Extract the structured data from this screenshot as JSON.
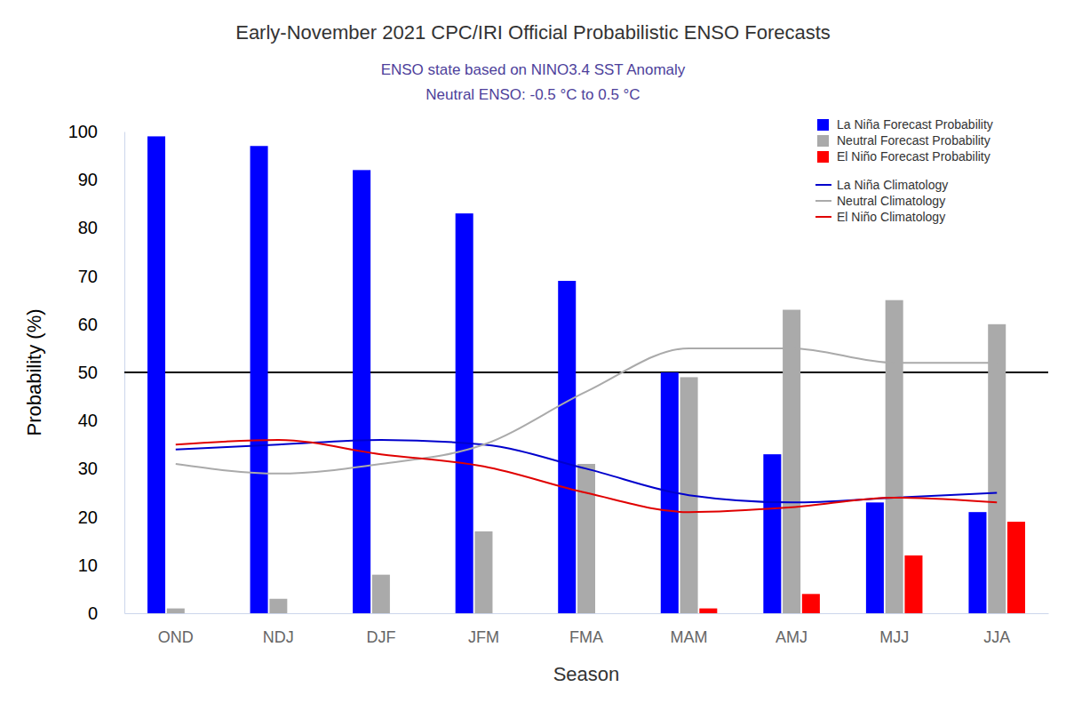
{
  "chart_data": {
    "type": "bar",
    "title": "Early-November 2021 CPC/IRI Official Probabilistic ENSO Forecasts",
    "subtitle": [
      "ENSO state based on NINO3.4 SST Anomaly",
      "Neutral ENSO: -0.5 °C to 0.5 °C"
    ],
    "x_label": "Season",
    "y_label": "Probability (%)",
    "categories": [
      "OND",
      "NDJ",
      "DJF",
      "JFM",
      "FMA",
      "MAM",
      "AMJ",
      "MJJ",
      "JJA"
    ],
    "series": [
      {
        "name": "La Niña Forecast Probability",
        "type": "bar",
        "color": "#0000ff",
        "values": [
          99,
          97,
          92,
          83,
          69,
          50,
          33,
          23,
          21
        ]
      },
      {
        "name": "Neutral Forecast Probability",
        "type": "bar",
        "color": "#aaaaaa",
        "values": [
          1,
          3,
          8,
          17,
          31,
          49,
          63,
          65,
          60
        ]
      },
      {
        "name": "El Niño Forecast Probability",
        "type": "bar",
        "color": "#ff0000",
        "values": [
          0,
          0,
          0,
          0,
          0,
          1,
          4,
          12,
          19
        ]
      },
      {
        "name": "La Niña Climatology",
        "type": "line",
        "color": "#0000cc",
        "line_style": "solid",
        "values": [
          34,
          35,
          36,
          35,
          30,
          24.5,
          23,
          24,
          25
        ]
      },
      {
        "name": "Neutral Climatology",
        "type": "line",
        "color": "#aaaaaa",
        "line_style": "solid",
        "values": [
          31,
          29,
          31,
          35,
          46,
          55,
          55,
          52,
          52
        ]
      },
      {
        "name": "El Niño Climatology",
        "type": "line",
        "color": "#e00000",
        "line_style": "solid",
        "values": [
          35,
          36,
          33,
          30.5,
          25,
          21,
          22,
          24,
          23
        ]
      }
    ],
    "reference_lines": [
      50
    ],
    "ylim": [
      0,
      100
    ],
    "yticks": [
      0,
      10,
      20,
      30,
      40,
      50,
      60,
      70,
      80,
      90,
      100
    ],
    "grid": false,
    "legend": "upper right"
  }
}
